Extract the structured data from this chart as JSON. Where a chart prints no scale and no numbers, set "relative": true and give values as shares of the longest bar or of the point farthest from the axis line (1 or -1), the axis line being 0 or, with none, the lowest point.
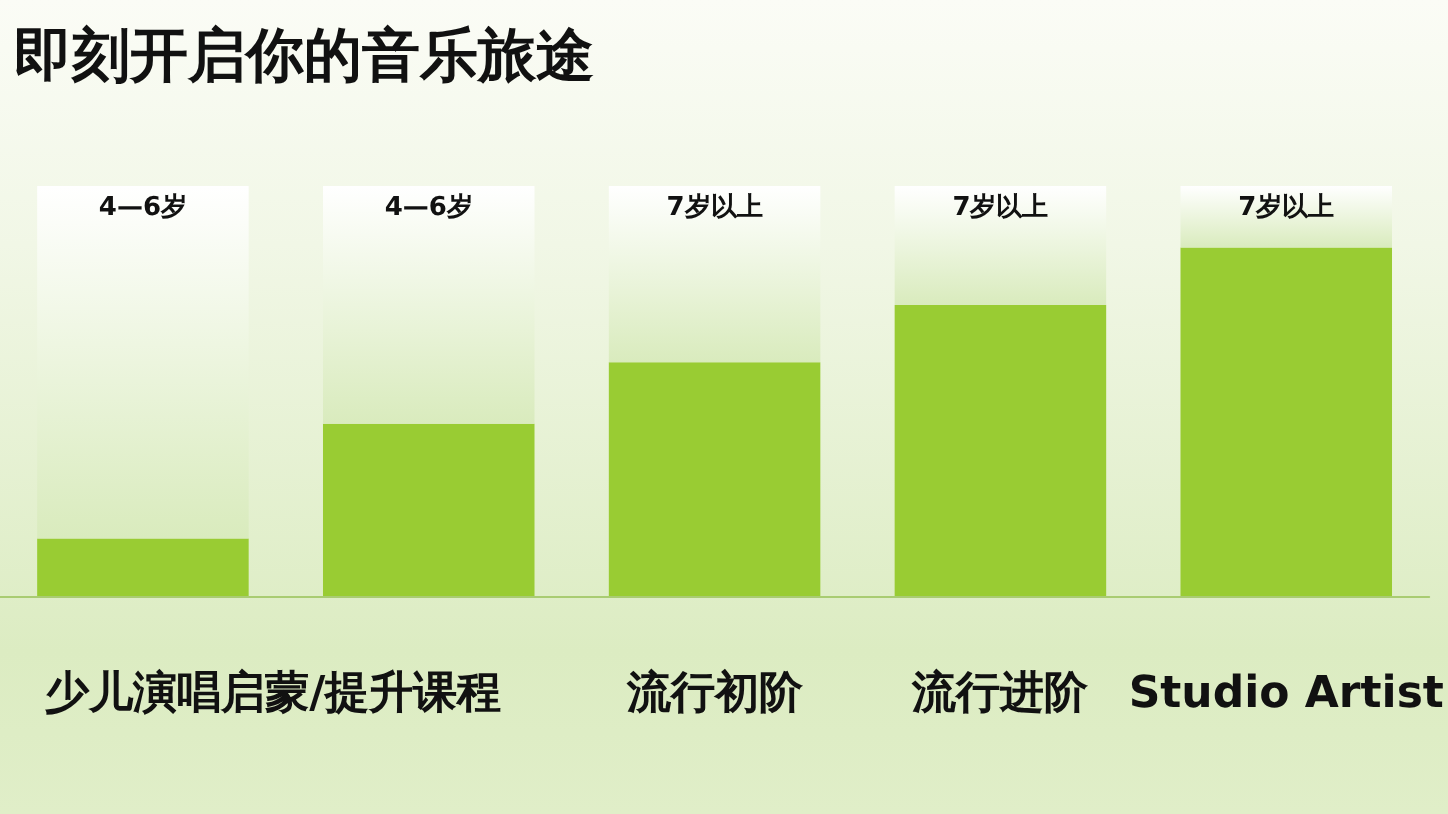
{
  "chart_data": {
    "type": "bar",
    "title": "即刻开启你的音乐旅途",
    "categories": [
      "少儿演唱启蒙/提升课程",
      null,
      "流行初阶",
      "流行进阶",
      "Studio Artist"
    ],
    "relative": true,
    "stacked": true,
    "series": [
      {
        "color": "#99cc33",
        "values": [
          0.14,
          0.42,
          0.57,
          0.71,
          0.85
        ]
      },
      {
        "color": "#d9ebbd",
        "values": [
          0.86,
          0.58,
          0.43,
          0.29,
          0.15
        ]
      }
    ],
    "annotations": [
      {
        "text": "4—6岁",
        "y": 1
      },
      {
        "text": "4—6岁",
        "y": 1
      },
      {
        "text": "7岁以上",
        "y": 1
      },
      {
        "text": "7岁以上",
        "y": 1
      },
      {
        "text": "7岁以上",
        "y": 1
      }
    ]
  }
}
